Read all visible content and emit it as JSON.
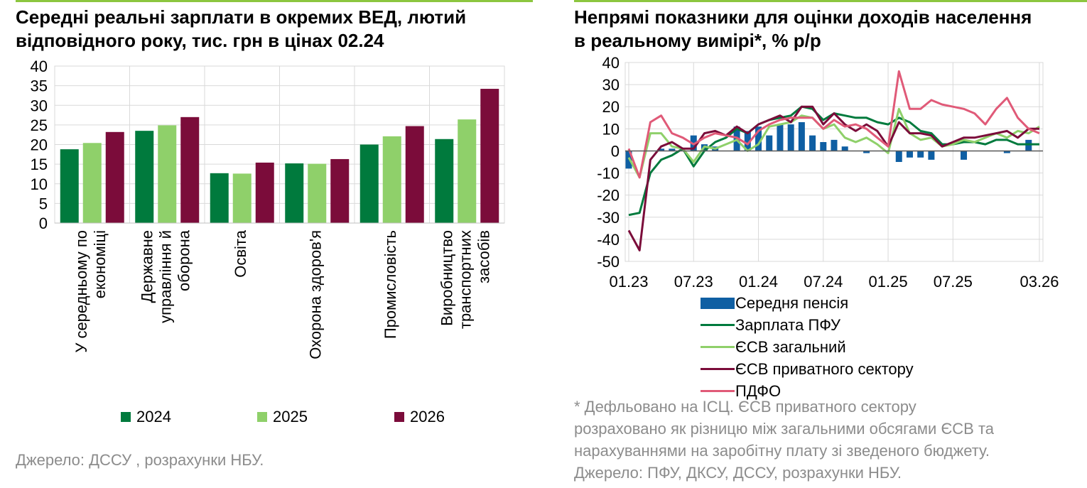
{
  "colors": {
    "green_dark": "#007a3d",
    "green_light": "#8fd06a",
    "burgundy": "#7b0c3a",
    "pink": "#e05a78",
    "blue": "#0f5fa3"
  },
  "left_chart": {
    "title_line1": "Середні реальні зарплати в окремих ВЕД, лютий",
    "title_line2": "відповідного року, тис. грн в цінах 02.24",
    "source": "Джерело: ДССУ , розрахунки НБУ."
  },
  "right_chart": {
    "title_line1": "Непрямі показники для оцінки доходів населення",
    "title_line2": "в реальному вимірі*, % р/р",
    "footnote_line1": "* Дефльовано на ІСЦ. ЄСВ приватного сектору",
    "footnote_line2": "розраховано як різницю між загальними обсягами ЄСВ та",
    "footnote_line3": "нарахуваннями на заробітну плату зі зведеного бюджету.",
    "footnote_line4": "Джерело: ПФУ, ДКСУ, ДССУ, розрахунки НБУ."
  },
  "chart_data": [
    {
      "type": "bar",
      "title": "Середні реальні зарплати в окремих ВЕД, лютий відповідного року, тис. грн в цінах 02.24",
      "categories": [
        [
          "У середньому по",
          "економіці"
        ],
        [
          "Державне",
          "управління й",
          "оборона"
        ],
        [
          "Освіта"
        ],
        [
          "Охорона здоров'я"
        ],
        [
          "Промисловість"
        ],
        [
          "Виробництво",
          "транспортних",
          "засобів"
        ]
      ],
      "series": [
        {
          "name": "2024",
          "color": "#007a3d",
          "values": [
            18.8,
            23.5,
            12.7,
            15.2,
            20.0,
            21.4
          ]
        },
        {
          "name": "2025",
          "color": "#8fd06a",
          "values": [
            20.4,
            24.9,
            12.6,
            15.1,
            22.1,
            26.4
          ]
        },
        {
          "name": "2026",
          "color": "#7b0c3a",
          "values": [
            23.2,
            27.0,
            15.4,
            16.3,
            24.7,
            34.2
          ]
        }
      ],
      "ylim": [
        0,
        40
      ],
      "yticks": [
        0,
        5,
        10,
        15,
        20,
        25,
        30,
        35,
        40
      ],
      "grid": true,
      "legend": "bottom"
    },
    {
      "type": "line",
      "title": "Непрямі показники для оцінки доходів населення в реальному вимірі*, % р/р",
      "x_start": "01.23",
      "periods": 39,
      "xtick_labels": [
        {
          "i": 0,
          "label": "01.23"
        },
        {
          "i": 6,
          "label": "07.23"
        },
        {
          "i": 12,
          "label": "01.24"
        },
        {
          "i": 18,
          "label": "07.24"
        },
        {
          "i": 24,
          "label": "01.25"
        },
        {
          "i": 30,
          "label": "07.25"
        },
        {
          "i": 38,
          "label": "03.26"
        }
      ],
      "ylim": [
        -50,
        40
      ],
      "yticks": [
        -50,
        -40,
        -30,
        -20,
        -10,
        0,
        10,
        20,
        30,
        40
      ],
      "grid": true,
      "bars": {
        "name": "Середня пенсія",
        "color": "#0f5fa3",
        "values": [
          -8,
          0,
          0,
          1,
          1,
          0,
          7,
          3,
          2,
          0,
          11,
          9,
          11,
          7,
          12,
          12,
          13,
          7,
          4,
          5,
          2,
          0,
          -1,
          0,
          0,
          -5,
          -3,
          -3,
          -4,
          0,
          0,
          -4,
          0,
          0,
          0,
          -1,
          0,
          5,
          0
        ],
        "note": "Середня пенсія (бари) в тих самих одиницях, що й лінії; деякі значення (0) не відображені"
      },
      "series": [
        {
          "name": "Зарплата ПФУ",
          "color": "#007a3d",
          "values": [
            -29,
            -28,
            -10,
            -4,
            -2,
            1,
            -7,
            0,
            4,
            6,
            10,
            8,
            12,
            14,
            15,
            16,
            20,
            19,
            14,
            17,
            16,
            15,
            15,
            13,
            12,
            15,
            13,
            9,
            8,
            3,
            3,
            4,
            4,
            3,
            5,
            5,
            3,
            3,
            3
          ]
        },
        {
          "name": "ЄСВ загальний",
          "color": "#8fd06a",
          "values": [
            -3,
            -12,
            8,
            8,
            2,
            1,
            -5,
            2,
            1,
            3,
            5,
            0,
            3,
            11,
            12,
            13,
            16,
            15,
            10,
            12,
            6,
            4,
            6,
            3,
            -1,
            19,
            8,
            5,
            6,
            2,
            3,
            5,
            4,
            6,
            8,
            6,
            9,
            8,
            11
          ]
        },
        {
          "name": "ЄСВ приватного сектору",
          "color": "#7b0c3a",
          "values": [
            -36,
            -45,
            -4,
            2,
            4,
            1,
            1,
            8,
            9,
            7,
            11,
            8,
            12,
            14,
            16,
            13,
            20,
            20,
            12,
            17,
            12,
            9,
            12,
            9,
            2,
            13,
            8,
            8,
            7,
            2,
            4,
            6,
            6,
            7,
            8,
            9,
            6,
            10,
            10
          ]
        },
        {
          "name": "ПДФО",
          "color": "#e05a78",
          "values": [
            1,
            -12,
            13,
            16,
            8,
            6,
            3,
            6,
            8,
            7,
            6,
            3,
            9,
            12,
            14,
            15,
            15,
            15,
            10,
            14,
            11,
            12,
            10,
            6,
            2,
            36,
            19,
            19,
            23,
            21,
            20,
            19,
            17,
            12,
            19,
            24,
            15,
            10,
            8
          ]
        }
      ],
      "legend": "below"
    }
  ]
}
